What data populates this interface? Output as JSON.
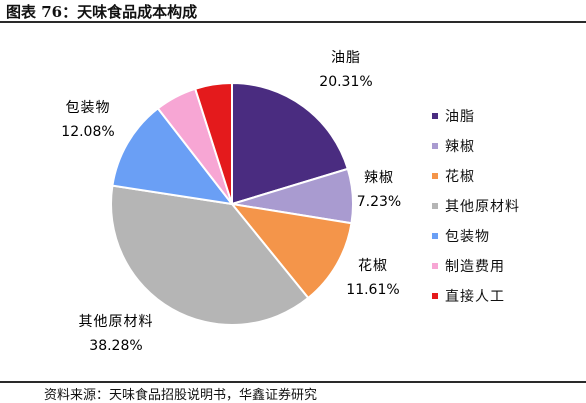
{
  "title": "图表 76：天味食品成本构成",
  "source": "资料来源：天味食品招股说明书，华鑫证券研究",
  "chart_data": {
    "type": "pie",
    "categories": [
      "油脂",
      "辣椒",
      "花椒",
      "其他原材料",
      "包装物",
      "制造费用",
      "直接人工"
    ],
    "values": [
      20.31,
      7.23,
      11.61,
      38.28,
      12.08,
      5.57,
      4.92
    ],
    "value_labels": [
      "20.31%",
      "7.23%",
      "11.61%",
      "38.28%",
      "12.08%",
      null,
      null
    ],
    "colors": [
      "#4a2c80",
      "#a99bd0",
      "#f4954a",
      "#b5b5b5",
      "#6a9ff5",
      "#f7a6d4",
      "#e41a1c"
    ],
    "start_angle_deg": 0,
    "direction": "clockwise",
    "legend_position": "right"
  }
}
